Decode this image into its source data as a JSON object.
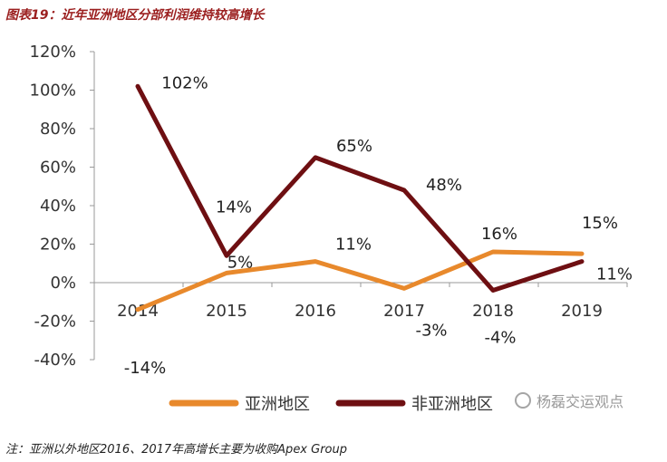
{
  "figure": {
    "title": "图表19：近年亚洲地区分部利润维持较高增长",
    "note": "注：亚洲以外地区2016、2017年高增长主要为收购Apex Group",
    "watermark": "杨磊交运观点"
  },
  "chart_data": {
    "type": "line",
    "title": "",
    "xlabel": "",
    "ylabel": "",
    "categories": [
      "2014",
      "2015",
      "2016",
      "2017",
      "2018",
      "2019"
    ],
    "ylim": [
      -40,
      120
    ],
    "yticks": [
      "120%",
      "100%",
      "80%",
      "60%",
      "40%",
      "20%",
      "0%",
      "-20%",
      "-40%"
    ],
    "ytick_values": [
      120,
      100,
      80,
      60,
      40,
      20,
      0,
      -20,
      -40
    ],
    "grid": false,
    "legend_position": "bottom",
    "series": [
      {
        "name": "亚洲地区",
        "color": "#e8892c",
        "values": [
          -14,
          5,
          11,
          -3,
          16,
          15
        ],
        "labels": [
          "-14%",
          "5%",
          "11%",
          "-3%",
          "16%",
          "15%"
        ]
      },
      {
        "name": "非亚洲地区",
        "color": "#6e0f12",
        "values": [
          102,
          14,
          65,
          48,
          -4,
          11
        ],
        "labels": [
          "102%",
          "14%",
          "65%",
          "48%",
          "-4%",
          "11%"
        ]
      }
    ]
  }
}
